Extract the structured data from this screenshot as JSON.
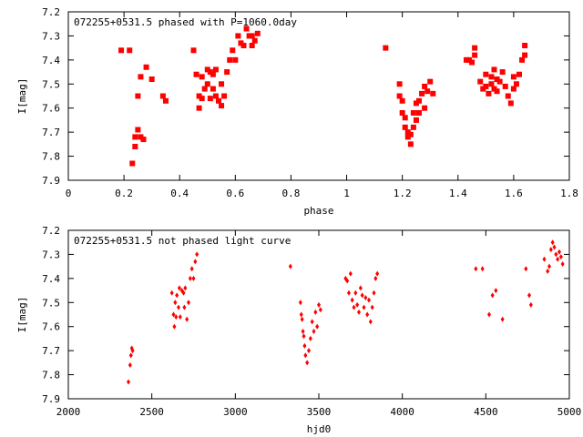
{
  "chart_data": [
    {
      "type": "scatter",
      "title": "072255+0531.5 phased with P=1060.0day",
      "xlabel": "phase",
      "ylabel": "I[mag]",
      "xlim": [
        0,
        1.8
      ],
      "ylim": [
        7.9,
        7.2
      ],
      "y_inverted": true,
      "x_ticks": [
        0,
        0.2,
        0.4,
        0.6,
        0.8,
        1,
        1.2,
        1.4,
        1.6,
        1.8
      ],
      "x_tick_labels": [
        "0",
        "0.2",
        "0.4",
        "0.6",
        "0.8",
        "1",
        "1.2",
        "1.4",
        "1.6",
        "1.8"
      ],
      "y_ticks": [
        7.2,
        7.3,
        7.4,
        7.5,
        7.6,
        7.7,
        7.8,
        7.9
      ],
      "y_tick_labels": [
        "7.2",
        "7.3",
        "7.4",
        "7.5",
        "7.6",
        "7.7",
        "7.8",
        "7.9"
      ],
      "grid": false,
      "marker_color": "#ff0000",
      "series": [
        {
          "x": [
            0.19,
            0.22,
            0.23,
            0.24,
            0.24,
            0.25,
            0.25,
            0.26,
            0.26,
            0.27,
            0.28,
            0.3,
            0.34,
            0.35,
            0.45,
            0.46,
            0.47,
            0.47,
            0.48,
            0.48,
            0.49,
            0.5,
            0.5,
            0.51,
            0.51,
            0.52,
            0.52,
            0.53,
            0.53,
            0.54,
            0.55,
            0.55,
            0.56,
            0.57,
            0.58,
            0.59,
            0.6,
            0.61,
            0.62,
            0.63,
            0.64,
            0.65,
            0.66,
            0.66,
            0.67,
            0.68,
            1.14,
            1.19,
            1.19,
            1.2,
            1.2,
            1.21,
            1.21,
            1.22,
            1.22,
            1.23,
            1.23,
            1.24,
            1.24,
            1.25,
            1.25,
            1.26,
            1.26,
            1.27,
            1.28,
            1.28,
            1.29,
            1.3,
            1.31,
            1.43,
            1.44,
            1.45,
            1.46,
            1.46,
            1.48,
            1.49,
            1.5,
            1.5,
            1.51,
            1.52,
            1.52,
            1.53,
            1.53,
            1.54,
            1.54,
            1.55,
            1.56,
            1.57,
            1.58,
            1.59,
            1.6,
            1.6,
            1.61,
            1.62,
            1.63,
            1.64,
            1.64
          ],
          "y": [
            7.36,
            7.36,
            7.83,
            7.76,
            7.72,
            7.69,
            7.55,
            7.72,
            7.47,
            7.73,
            7.43,
            7.48,
            7.55,
            7.57,
            7.36,
            7.46,
            7.55,
            7.6,
            7.47,
            7.56,
            7.52,
            7.5,
            7.44,
            7.56,
            7.45,
            7.46,
            7.52,
            7.55,
            7.44,
            7.57,
            7.5,
            7.59,
            7.55,
            7.45,
            7.4,
            7.36,
            7.4,
            7.3,
            7.33,
            7.34,
            7.27,
            7.3,
            7.34,
            7.3,
            7.32,
            7.29,
            7.35,
            7.5,
            7.55,
            7.57,
            7.62,
            7.64,
            7.68,
            7.7,
            7.72,
            7.71,
            7.75,
            7.68,
            7.62,
            7.65,
            7.58,
            7.57,
            7.62,
            7.54,
            7.6,
            7.51,
            7.53,
            7.49,
            7.54,
            7.4,
            7.4,
            7.41,
            7.35,
            7.38,
            7.49,
            7.52,
            7.46,
            7.51,
            7.54,
            7.47,
            7.5,
            7.44,
            7.52,
            7.48,
            7.53,
            7.49,
            7.45,
            7.51,
            7.55,
            7.58,
            7.52,
            7.47,
            7.5,
            7.46,
            7.4,
            7.38,
            7.34
          ]
        }
      ]
    },
    {
      "type": "scatter",
      "title": "072255+0531.5 not phased light curve",
      "xlabel": "hjd0",
      "ylabel": "I[mag]",
      "xlim": [
        2000,
        5000
      ],
      "ylim": [
        7.9,
        7.2
      ],
      "y_inverted": true,
      "x_ticks": [
        2000,
        2500,
        3000,
        3500,
        4000,
        4500,
        5000
      ],
      "x_tick_labels": [
        "2000",
        "2500",
        "3000",
        "3500",
        "4000",
        "4500",
        "5000"
      ],
      "y_ticks": [
        7.2,
        7.3,
        7.4,
        7.5,
        7.6,
        7.7,
        7.8,
        7.9
      ],
      "y_tick_labels": [
        "7.2",
        "7.3",
        "7.4",
        "7.5",
        "7.6",
        "7.7",
        "7.8",
        "7.9"
      ],
      "grid": false,
      "marker_color": "#ff0000",
      "series": [
        {
          "x": [
            2360,
            2370,
            2375,
            2380,
            2385,
            2620,
            2630,
            2635,
            2640,
            2645,
            2650,
            2660,
            2665,
            2670,
            2680,
            2690,
            2695,
            2700,
            2710,
            2720,
            2730,
            2740,
            2750,
            2760,
            2770,
            3330,
            3390,
            3395,
            3400,
            3405,
            3410,
            3415,
            3420,
            3430,
            3440,
            3450,
            3460,
            3470,
            3480,
            3490,
            3500,
            3510,
            3660,
            3670,
            3680,
            3690,
            3700,
            3710,
            3720,
            3730,
            3740,
            3750,
            3760,
            3770,
            3780,
            3790,
            3800,
            3810,
            3820,
            3830,
            3840,
            3850,
            4440,
            4480,
            4520,
            4540,
            4560,
            4600,
            4740,
            4760,
            4770,
            4850,
            4870,
            4880,
            4890,
            4900,
            4910,
            4920,
            4930,
            4940,
            4950,
            4960
          ],
          "y": [
            7.83,
            7.76,
            7.72,
            7.69,
            7.7,
            7.46,
            7.55,
            7.6,
            7.5,
            7.56,
            7.47,
            7.52,
            7.44,
            7.56,
            7.45,
            7.46,
            7.52,
            7.44,
            7.57,
            7.5,
            7.4,
            7.36,
            7.4,
            7.33,
            7.3,
            7.35,
            7.5,
            7.55,
            7.57,
            7.62,
            7.64,
            7.68,
            7.72,
            7.75,
            7.7,
            7.65,
            7.58,
            7.62,
            7.54,
            7.6,
            7.51,
            7.53,
            7.4,
            7.41,
            7.46,
            7.38,
            7.49,
            7.52,
            7.46,
            7.51,
            7.54,
            7.44,
            7.47,
            7.52,
            7.48,
            7.55,
            7.49,
            7.58,
            7.52,
            7.46,
            7.4,
            7.38,
            7.36,
            7.36,
            7.55,
            7.47,
            7.45,
            7.57,
            7.36,
            7.47,
            7.51,
            7.32,
            7.37,
            7.35,
            7.28,
            7.25,
            7.27,
            7.3,
            7.32,
            7.29,
            7.31,
            7.34
          ]
        }
      ]
    }
  ]
}
